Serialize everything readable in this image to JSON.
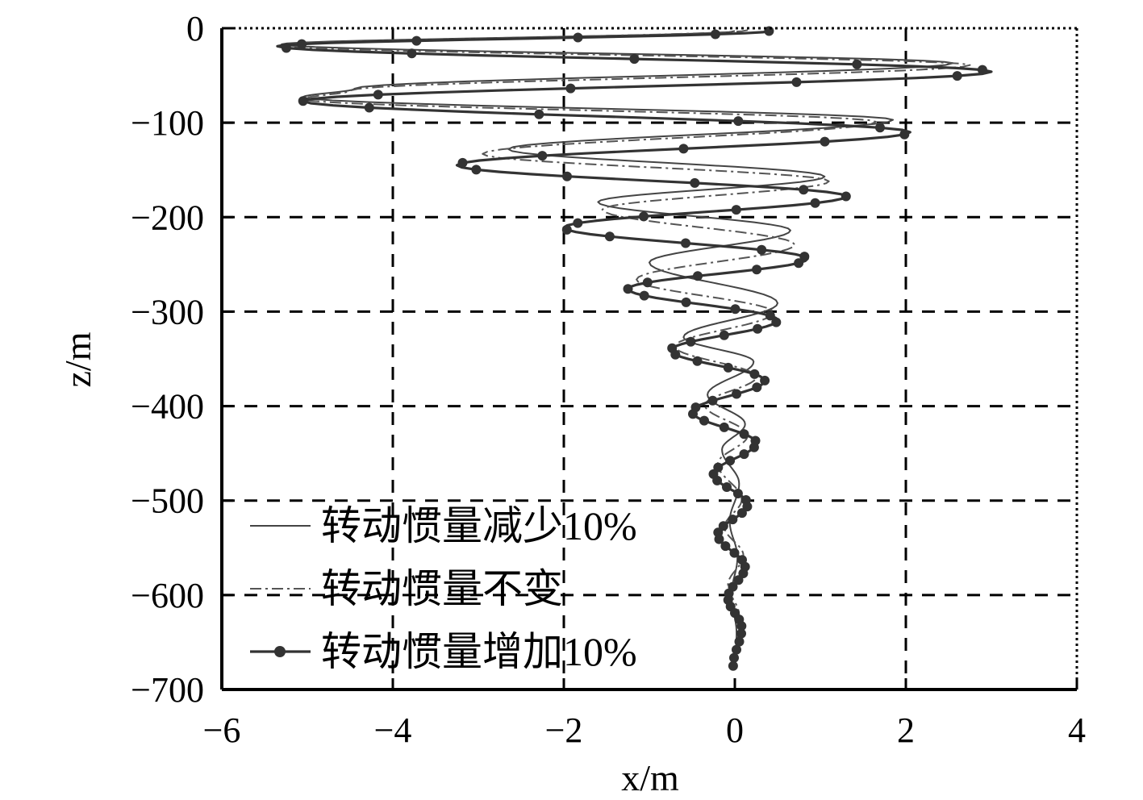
{
  "chart_data": {
    "type": "line",
    "xlabel": "x/m",
    "ylabel": "z/m",
    "xlim": [
      -6,
      4
    ],
    "ylim": [
      -700,
      0
    ],
    "xticks": [
      "−6",
      "−4",
      "−2",
      "0",
      "2",
      "4"
    ],
    "yticks": [
      "0",
      "−100",
      "−200",
      "−300",
      "−400",
      "−500",
      "−600",
      "−700"
    ],
    "xtick_values": [
      -6,
      -4,
      -2,
      0,
      2,
      4
    ],
    "ytick_values": [
      0,
      -100,
      -200,
      -300,
      -400,
      -500,
      -600,
      -700
    ],
    "grid_x": [
      -4,
      -2,
      2
    ],
    "grid_y": [
      -100,
      -200,
      -300,
      -400,
      -500,
      -600
    ],
    "legend_position": "lower-left",
    "series": [
      {
        "name": "转动惯量减少10%",
        "style": "solid",
        "color": "#444444",
        "points": [
          [
            0,
            -3
          ],
          [
            -5.3,
            -17
          ],
          [
            2.55,
            -37
          ],
          [
            -4.45,
            -64
          ],
          [
            -5.05,
            -73
          ],
          [
            1.85,
            -97
          ],
          [
            -2.65,
            -128
          ],
          [
            1.05,
            -157
          ],
          [
            -1.6,
            -184
          ],
          [
            0.65,
            -214
          ],
          [
            -1.0,
            -248
          ],
          [
            0.5,
            -291
          ],
          [
            -0.6,
            -327
          ],
          [
            0.22,
            -353
          ],
          [
            -0.32,
            -388
          ],
          [
            0.12,
            -419
          ],
          [
            -0.15,
            -446
          ],
          [
            0.05,
            -482
          ],
          [
            -0.06,
            -522
          ],
          [
            0.03,
            -560
          ],
          [
            -0.04,
            -600
          ],
          [
            0.02,
            -640
          ],
          [
            0.0,
            -675
          ]
        ]
      },
      {
        "name": "转动惯量不变",
        "style": "dashdot",
        "color": "#555555",
        "points": [
          [
            0.15,
            -2
          ],
          [
            -5.3,
            -18
          ],
          [
            2.75,
            -39
          ],
          [
            -4.5,
            -66
          ],
          [
            -5.05,
            -75
          ],
          [
            1.65,
            -99
          ],
          [
            -2.95,
            -133
          ],
          [
            1.1,
            -162
          ],
          [
            -1.55,
            -192
          ],
          [
            0.7,
            -229
          ],
          [
            -1.15,
            -266
          ],
          [
            0.45,
            -301
          ],
          [
            -0.7,
            -337
          ],
          [
            0.25,
            -369
          ],
          [
            -0.35,
            -399
          ],
          [
            0.15,
            -431
          ],
          [
            -0.2,
            -461
          ],
          [
            0.08,
            -499
          ],
          [
            -0.12,
            -528
          ],
          [
            0.1,
            -558
          ],
          [
            -0.08,
            -589
          ],
          [
            0.05,
            -621
          ],
          [
            0.0,
            -672
          ]
        ]
      },
      {
        "name": "转动惯量增加10%",
        "style": "marker",
        "color": "#333333",
        "points": [
          [
            0.4,
            -3
          ],
          [
            -5.35,
            -19
          ],
          [
            3.0,
            -46
          ],
          [
            -5.05,
            -77
          ],
          [
            2.05,
            -110
          ],
          [
            -3.25,
            -145
          ],
          [
            1.3,
            -178
          ],
          [
            -2.0,
            -211
          ],
          [
            0.85,
            -244
          ],
          [
            -1.25,
            -276
          ],
          [
            0.5,
            -309
          ],
          [
            -0.75,
            -341
          ],
          [
            0.35,
            -373
          ],
          [
            -0.5,
            -406
          ],
          [
            0.25,
            -439
          ],
          [
            -0.25,
            -472
          ],
          [
            0.15,
            -504
          ],
          [
            -0.2,
            -536
          ],
          [
            0.12,
            -570
          ],
          [
            -0.08,
            -603
          ],
          [
            0.08,
            -635
          ],
          [
            -0.02,
            -675
          ]
        ]
      }
    ]
  }
}
